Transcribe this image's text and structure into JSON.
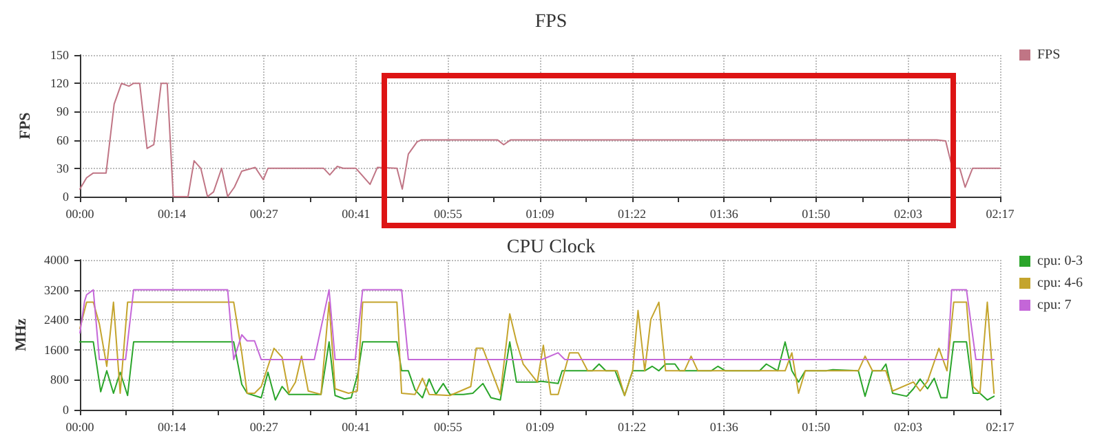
{
  "chart_data": [
    {
      "type": "line",
      "title": "FPS",
      "ylabel": "FPS",
      "legend": "top right",
      "grid": true,
      "marker": "none",
      "line_style": "solid",
      "xlim": [
        0,
        137
      ],
      "ylim": [
        0,
        150
      ],
      "yticks": [
        0,
        30,
        60,
        90,
        120,
        150
      ],
      "xticks": [
        {
          "value": 0,
          "label": "00:00"
        },
        {
          "value": 6.85,
          "label": null
        },
        {
          "value": 13.7,
          "label": "00:14"
        },
        {
          "value": 20.55,
          "label": null
        },
        {
          "value": 27.4,
          "label": "00:27"
        },
        {
          "value": 34.25,
          "label": null
        },
        {
          "value": 41.1,
          "label": "00:41"
        },
        {
          "value": 47.95,
          "label": null
        },
        {
          "value": 54.8,
          "label": "00:55"
        },
        {
          "value": 61.65,
          "label": null
        },
        {
          "value": 68.5,
          "label": "01:09"
        },
        {
          "value": 75.35,
          "label": null
        },
        {
          "value": 82.2,
          "label": "01:22"
        },
        {
          "value": 89.05,
          "label": null
        },
        {
          "value": 95.9,
          "label": "01:36"
        },
        {
          "value": 102.75,
          "label": null
        },
        {
          "value": 109.6,
          "label": "01:50"
        },
        {
          "value": 116.45,
          "label": null
        },
        {
          "value": 123.3,
          "label": "02:03"
        },
        {
          "value": 130.15,
          "label": null
        },
        {
          "value": 137,
          "label": "02:17"
        }
      ],
      "series": [
        {
          "name": "FPS",
          "color": "#c07585",
          "x": [
            0,
            1.0,
            2.0,
            3.9,
            5.1,
            6.2,
            7.3,
            8.0,
            8.9,
            10.0,
            11.0,
            12.1,
            13.0,
            13.9,
            16.1,
            17.0,
            18.0,
            19.0,
            19.9,
            21.1,
            22.0,
            23.0,
            24.1,
            26.1,
            27.3,
            28.0,
            36.3,
            37.2,
            38.3,
            39.2,
            41.1,
            43.2,
            44.3,
            47.2,
            48.0,
            48.9,
            50.2,
            50.8,
            62.2,
            63.1,
            64.1,
            127.6,
            128.9,
            129.9,
            131.0,
            131.8,
            132.9,
            137
          ],
          "values": [
            8,
            20,
            25,
            25,
            98,
            120,
            117,
            120,
            120,
            51,
            55,
            120,
            120,
            0,
            0,
            38,
            30,
            0,
            5,
            30,
            0,
            10,
            27,
            31,
            18,
            30,
            30,
            23,
            32,
            30,
            30,
            13,
            31,
            30,
            8,
            45,
            58,
            60,
            60,
            55,
            60,
            60,
            59,
            30,
            30,
            10,
            30,
            30
          ]
        }
      ]
    },
    {
      "type": "line",
      "title": "CPU Clock",
      "ylabel": "MHz",
      "legend": "top right",
      "grid": true,
      "marker": "none",
      "line_style": "solid",
      "xlim": [
        0,
        137
      ],
      "ylim": [
        0,
        4000
      ],
      "yticks": [
        0,
        800,
        1600,
        2400,
        3200,
        4000
      ],
      "xticks": [
        {
          "value": 0,
          "label": "00:00"
        },
        {
          "value": 6.85,
          "label": null
        },
        {
          "value": 13.7,
          "label": "00:14"
        },
        {
          "value": 20.55,
          "label": null
        },
        {
          "value": 27.4,
          "label": "00:27"
        },
        {
          "value": 34.25,
          "label": null
        },
        {
          "value": 41.1,
          "label": "00:41"
        },
        {
          "value": 47.95,
          "label": null
        },
        {
          "value": 54.8,
          "label": "00:55"
        },
        {
          "value": 61.65,
          "label": null
        },
        {
          "value": 68.5,
          "label": "01:09"
        },
        {
          "value": 75.35,
          "label": null
        },
        {
          "value": 82.2,
          "label": "01:22"
        },
        {
          "value": 89.05,
          "label": null
        },
        {
          "value": 95.9,
          "label": "01:36"
        },
        {
          "value": 102.75,
          "label": null
        },
        {
          "value": 109.6,
          "label": "01:50"
        },
        {
          "value": 116.45,
          "label": null
        },
        {
          "value": 123.3,
          "label": "02:03"
        },
        {
          "value": 130.15,
          "label": null
        },
        {
          "value": 137,
          "label": "02:17"
        }
      ],
      "series": [
        {
          "name": "cpu: 0-3",
          "color": "#2aa52a",
          "x": [
            0,
            2.0,
            3.1,
            4.0,
            5.0,
            6.0,
            7.1,
            8.0,
            22.9,
            24.1,
            24.9,
            27.0,
            28.0,
            29.1,
            30.1,
            31.1,
            35.9,
            37.1,
            38.0,
            39.4,
            40.4,
            41.4,
            42.1,
            47.2,
            47.9,
            48.9,
            49.9,
            51.0,
            52.0,
            53.0,
            54.1,
            55.1,
            57.1,
            58.5,
            60.0,
            61.2,
            62.6,
            64.0,
            65.0,
            68.1,
            68.6,
            71.2,
            71.8,
            76.3,
            77.3,
            78.3,
            79.7,
            81.1,
            82.3,
            84.1,
            85.2,
            86.2,
            87.2,
            88.6,
            89.3,
            94.0,
            95.0,
            96.1,
            101.2,
            102.2,
            103.9,
            105.0,
            106.0,
            107.0,
            108.0,
            111.1,
            112.1,
            115.9,
            116.9,
            118.0,
            119.3,
            120.0,
            121.0,
            123.1,
            124.1,
            125.1,
            126.2,
            127.2,
            128.2,
            129.1,
            130.1,
            132.0,
            133.0,
            134.0,
            135.1,
            136.1
          ],
          "values": [
            1810,
            1810,
            480,
            1040,
            440,
            1000,
            380,
            1810,
            1810,
            680,
            440,
            320,
            1000,
            260,
            620,
            410,
            410,
            1810,
            380,
            290,
            320,
            980,
            1810,
            1810,
            1040,
            1040,
            530,
            320,
            820,
            410,
            700,
            410,
            410,
            440,
            700,
            320,
            260,
            1810,
            740,
            740,
            760,
            700,
            1040,
            1040,
            1220,
            1040,
            1040,
            380,
            1040,
            1040,
            1160,
            1040,
            1220,
            1220,
            1040,
            1040,
            1160,
            1040,
            1040,
            1220,
            1040,
            1810,
            1040,
            740,
            1040,
            1040,
            1070,
            1040,
            360,
            1040,
            1040,
            1220,
            440,
            360,
            560,
            820,
            560,
            840,
            320,
            320,
            1810,
            1810,
            440,
            440,
            260,
            360
          ]
        },
        {
          "name": "cpu: 4-6",
          "color": "#c4a42c",
          "x": [
            0,
            1.0,
            2.0,
            2.9,
            4.0,
            5.0,
            6.0,
            7.1,
            22.9,
            24.1,
            24.9,
            26.0,
            27.0,
            28.9,
            30.1,
            31.1,
            32.1,
            33.0,
            34.0,
            35.9,
            37.1,
            38.0,
            40.0,
            41.3,
            42.1,
            47.2,
            47.9,
            49.9,
            51.0,
            52.0,
            55.1,
            58.2,
            59.0,
            60.0,
            62.6,
            64.0,
            65.0,
            66.0,
            68.1,
            69.0,
            70.1,
            71.2,
            72.9,
            74.2,
            75.6,
            80.0,
            81.1,
            82.3,
            83.1,
            84.1,
            85.0,
            86.2,
            87.2,
            90.0,
            91.0,
            92.0,
            105.0,
            106.0,
            107.0,
            108.0,
            115.9,
            116.9,
            118.0,
            120.0,
            121.0,
            124.1,
            125.1,
            126.2,
            127.9,
            129.1,
            130.1,
            132.0,
            133.0,
            134.0,
            135.1,
            136.1
          ],
          "values": [
            2170,
            2870,
            2870,
            2290,
            1160,
            2870,
            440,
            2870,
            2870,
            1520,
            440,
            440,
            620,
            1640,
            1400,
            440,
            740,
            1430,
            500,
            410,
            2870,
            560,
            440,
            500,
            2870,
            2870,
            440,
            410,
            840,
            410,
            380,
            620,
            1640,
            1640,
            410,
            2560,
            1810,
            1220,
            740,
            1720,
            410,
            410,
            1520,
            1520,
            1040,
            1040,
            380,
            1040,
            2650,
            1040,
            2410,
            2870,
            1040,
            1040,
            1430,
            1040,
            1040,
            1520,
            440,
            1040,
            1040,
            1430,
            1040,
            1040,
            500,
            740,
            500,
            760,
            1640,
            1040,
            2870,
            2870,
            620,
            440,
            2870,
            440
          ]
        },
        {
          "name": "cpu: 7",
          "color": "#c466d8",
          "x": [
            0,
            0.7,
            1.0,
            2.0,
            2.9,
            6.8,
            8.0,
            22.0,
            22.9,
            24.1,
            24.9,
            26.0,
            27.0,
            34.9,
            37.1,
            38.0,
            41.0,
            42.1,
            47.9,
            48.9,
            68.8,
            71.2,
            72.2,
            129.2,
            129.8,
            132.0,
            133.4,
            136.1
          ],
          "values": [
            2050,
            2900,
            3070,
            3200,
            1340,
            1340,
            3200,
            3200,
            1340,
            2000,
            1840,
            1840,
            1340,
            1340,
            3200,
            1340,
            1340,
            3200,
            3200,
            1340,
            1340,
            1520,
            1340,
            1340,
            3200,
            3200,
            1340,
            1340
          ]
        }
      ]
    }
  ]
}
